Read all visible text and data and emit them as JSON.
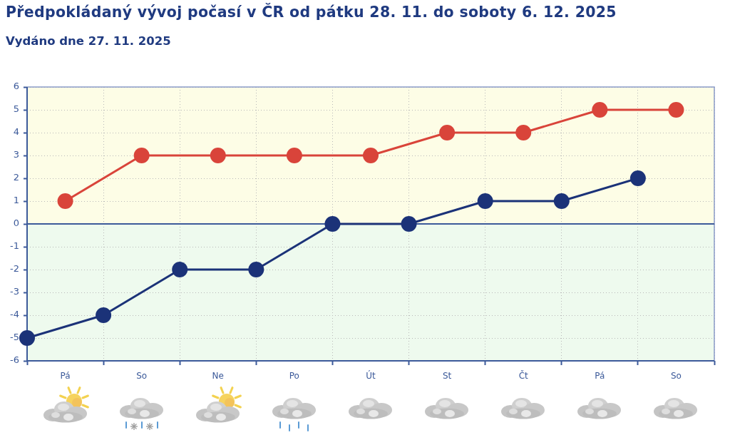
{
  "chart_data": {
    "type": "line",
    "title": "Předpokládaný vývoj počasí v ČR od pátku 28. 11. do soboty 6. 12. 2025",
    "subtitle": "Vydáno dne 27. 11. 2025",
    "categories": [
      null,
      "Pá",
      null,
      "So",
      null,
      "Ne",
      null,
      "Po",
      null,
      "Út",
      null,
      "St",
      null,
      "Čt",
      null,
      "Pá",
      null,
      "So",
      null
    ],
    "series": [
      {
        "color": "#d9443a",
        "values": [
          null,
          1,
          null,
          3,
          null,
          3,
          null,
          3,
          null,
          3,
          null,
          4,
          null,
          4,
          null,
          5,
          null,
          5,
          null
        ]
      },
      {
        "color": "#1b3278",
        "values": [
          -5,
          null,
          -4,
          null,
          -2,
          null,
          -2,
          null,
          0,
          null,
          0,
          null,
          1,
          null,
          1,
          null,
          2,
          null,
          null
        ]
      }
    ],
    "ylim": [
      -6,
      6
    ],
    "yticks": [
      -6,
      -5,
      -4,
      -3,
      -2,
      -1,
      0,
      1,
      2,
      3,
      4,
      5,
      6
    ],
    "grid": true,
    "marker": "circle",
    "line_style": "solid",
    "bands": [
      {
        "axis": "y",
        "from": 0,
        "to": 6,
        "color": "#fdfde6"
      },
      {
        "axis": "y",
        "from": -6,
        "to": 0,
        "color": "#eefaee"
      }
    ],
    "ref_lines": [
      {
        "axis": "y",
        "value": 0,
        "color": "#3c5a9a"
      }
    ]
  }
}
